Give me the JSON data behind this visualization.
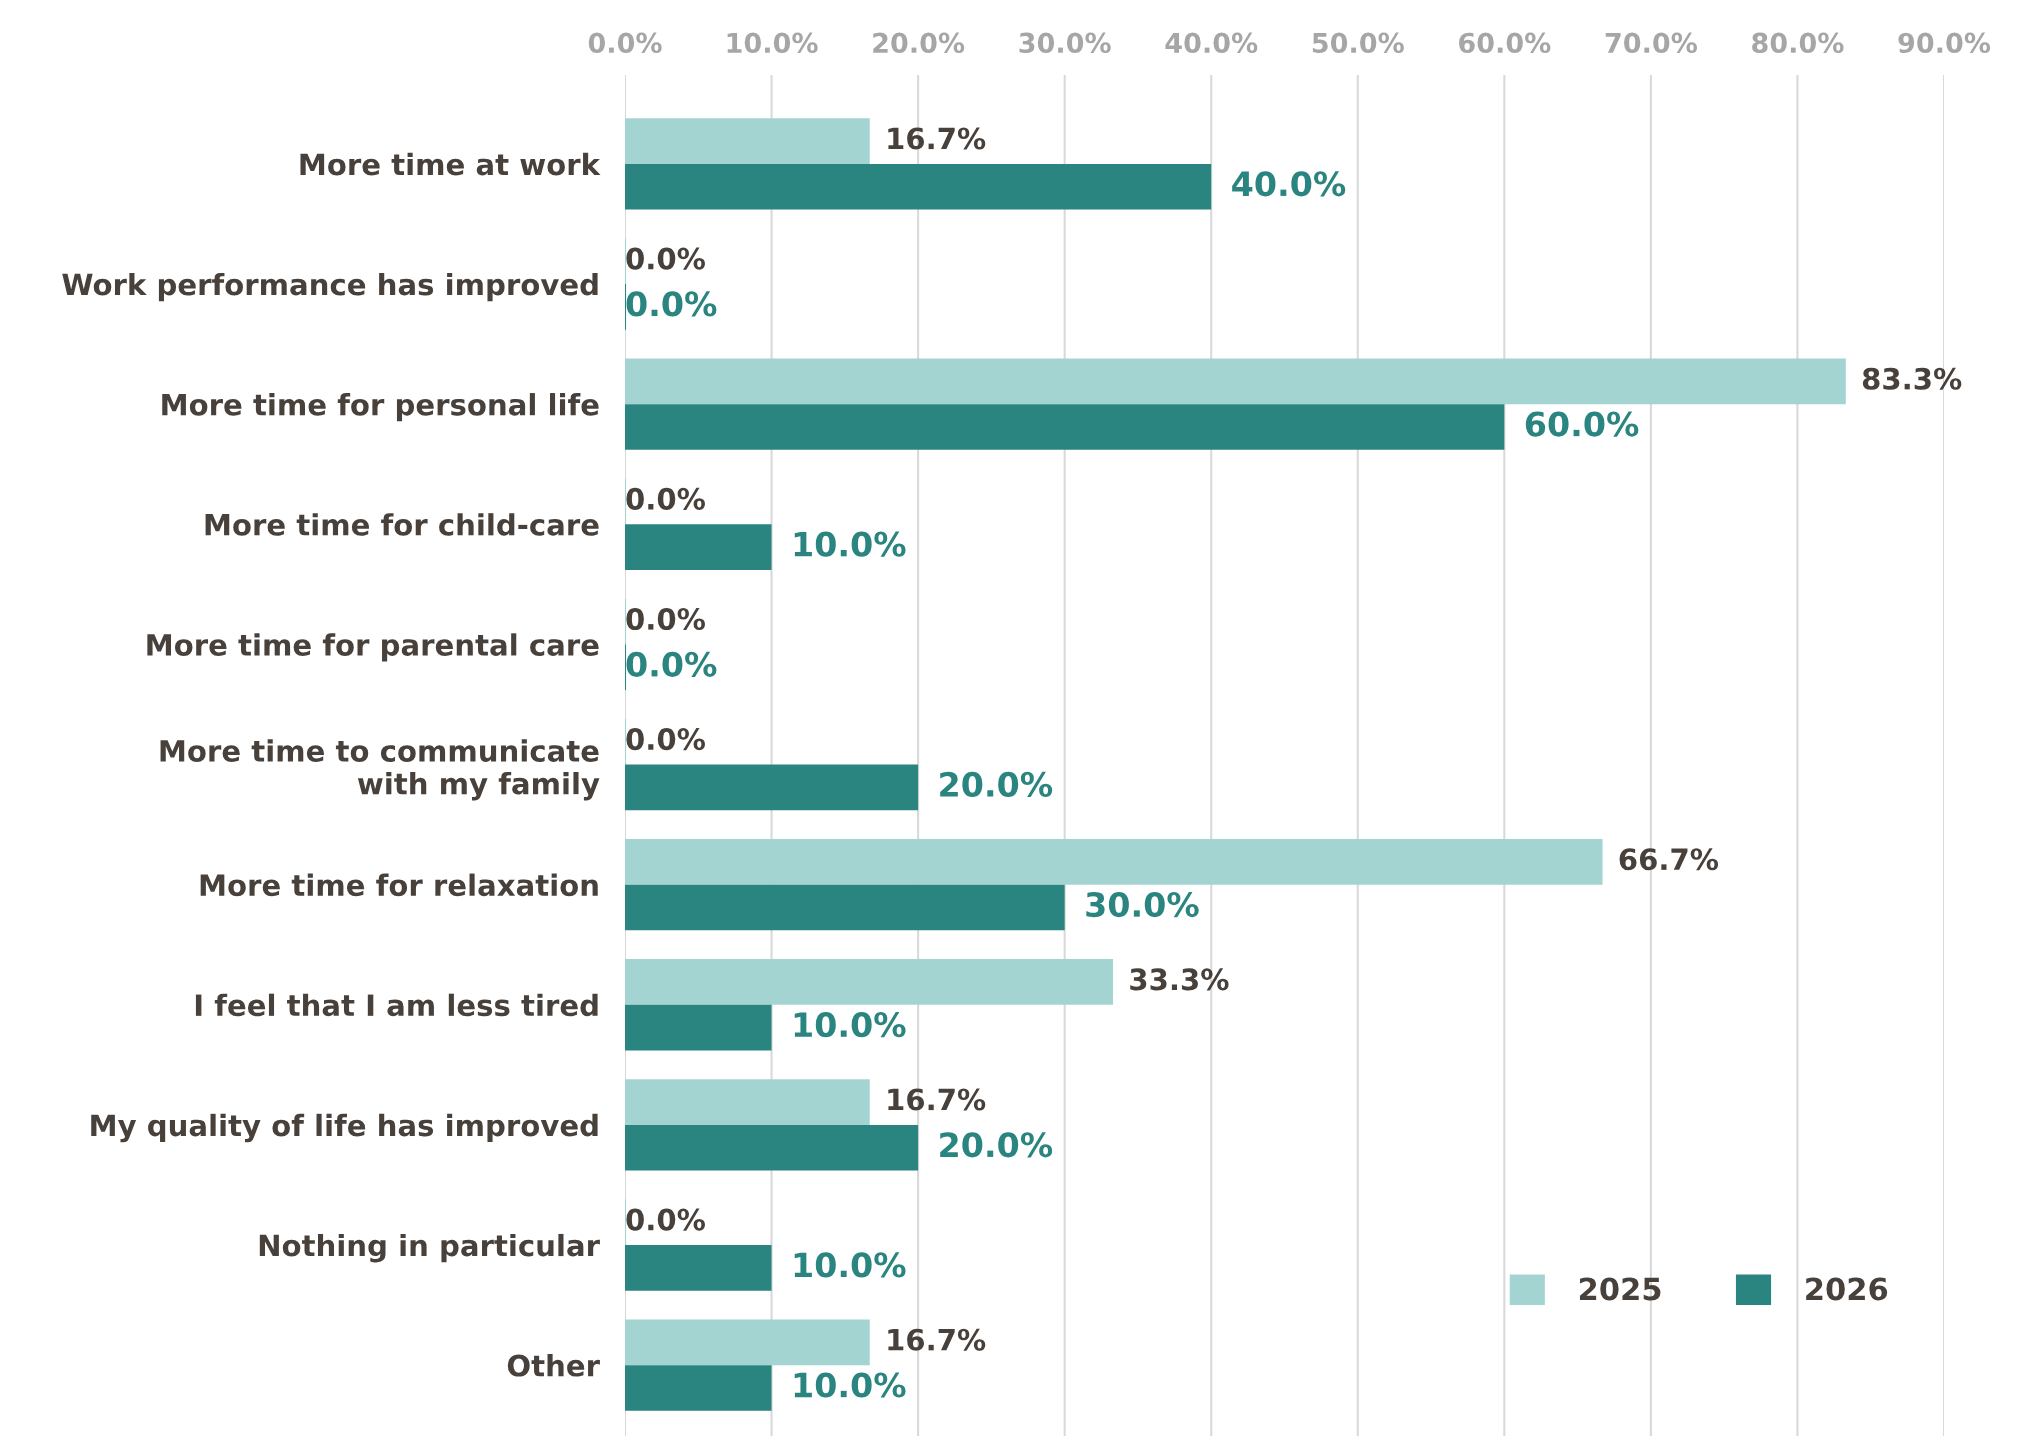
{
  "chart_data": {
    "type": "bar",
    "orientation": "horizontal",
    "categories": [
      "More time at work",
      "Work performance has improved",
      "More time for personal life",
      "More time for child-care",
      "More time for parental care",
      "More time to communicate\nwith my family",
      "More time for relaxation",
      "I feel that I am less tired",
      "My quality of life has improved",
      "Nothing in particular",
      "Other"
    ],
    "series": [
      {
        "name": "2025",
        "color": "#a3d4d1",
        "values": [
          16.7,
          0,
          83.3,
          0,
          0,
          0,
          66.7,
          33.3,
          16.7,
          0,
          16.7
        ],
        "value_labels": [
          "16.7%",
          "0.0%",
          "83.3%",
          "0.0%",
          "0.0%",
          "0.0%",
          "66.7%",
          "33.3%",
          "16.7%",
          "0.0%",
          "16.7%"
        ]
      },
      {
        "name": "2026",
        "color": "#2a8480",
        "values": [
          40,
          0,
          60,
          10,
          0,
          20,
          30,
          10,
          20,
          10,
          10
        ],
        "value_labels": [
          "40.0%",
          "0.0%",
          "60.0%",
          "10.0%",
          "0.0%",
          "20.0%",
          "30.0%",
          "10.0%",
          "20.0%",
          "10.0%",
          "10.0%"
        ]
      }
    ],
    "xlim": [
      0,
      90
    ],
    "xticks": [
      {
        "value": 0,
        "label": "0.0%"
      },
      {
        "value": 10,
        "label": "10.0%"
      },
      {
        "value": 20,
        "label": "20.0%"
      },
      {
        "value": 30,
        "label": "30.0%"
      },
      {
        "value": 40,
        "label": "40.0%"
      },
      {
        "value": 50,
        "label": "50.0%"
      },
      {
        "value": 60,
        "label": "60.0%"
      },
      {
        "value": 70,
        "label": "70.0%"
      },
      {
        "value": 80,
        "label": "80.0%"
      },
      {
        "value": 90,
        "label": "90.0%"
      }
    ],
    "grid": "x",
    "legend": "bottom right"
  }
}
